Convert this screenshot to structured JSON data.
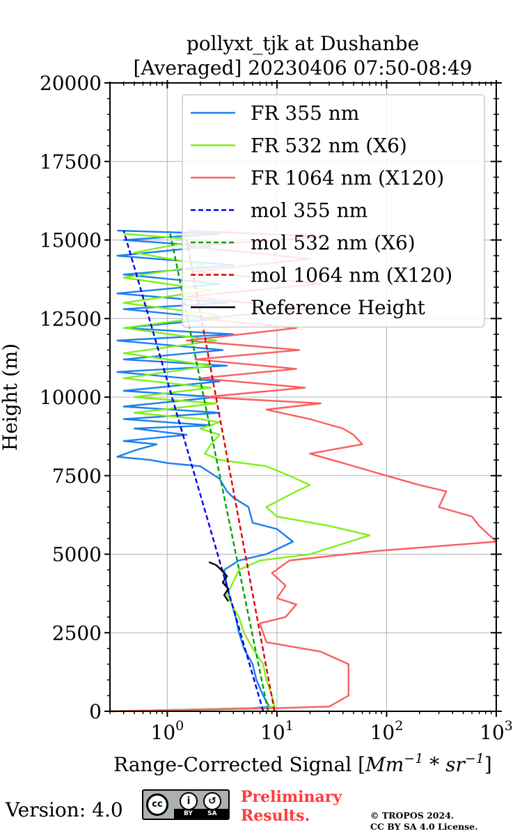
{
  "chart_data": {
    "type": "line",
    "title_lines": [
      "pollyxt_tjk at Dushanbe",
      "[Averaged] 20230406 07:50-08:49"
    ],
    "xlabel_main": "Range-Corrected Signal [",
    "xlabel_unit": "Mm",
    "xlabel_exp1": "−1",
    "xlabel_mid": " * ",
    "xlabel_unit2": "sr",
    "xlabel_exp2": "−1",
    "xlabel_end": "]",
    "ylabel": "Height (m)",
    "xscale": "log",
    "xlim": [
      0.3,
      1000
    ],
    "ylim": [
      0,
      20000
    ],
    "grid": true,
    "legend_position": "top-right",
    "x_ticks": [
      {
        "value": 1,
        "base": "10",
        "exp": "0"
      },
      {
        "value": 10,
        "base": "10",
        "exp": "1"
      },
      {
        "value": 100,
        "base": "10",
        "exp": "2"
      },
      {
        "value": 1000,
        "base": "10",
        "exp": "3"
      }
    ],
    "y_ticks": [
      {
        "value": 0,
        "label": "0"
      },
      {
        "value": 2500,
        "label": "2500"
      },
      {
        "value": 5000,
        "label": "5000"
      },
      {
        "value": 7500,
        "label": "7500"
      },
      {
        "value": 10000,
        "label": "10000"
      },
      {
        "value": 12500,
        "label": "12500"
      },
      {
        "value": 15000,
        "label": "15000"
      },
      {
        "value": 17500,
        "label": "17500"
      },
      {
        "value": 20000,
        "label": "20000"
      }
    ],
    "series": [
      {
        "name": "FR 355 nm",
        "style": "solid",
        "color": "#1a7ff0",
        "points": [
          [
            0.3,
            0
          ],
          [
            6,
            100
          ],
          [
            8.5,
            150
          ],
          [
            7.5,
            500
          ],
          [
            6.5,
            1000
          ],
          [
            6,
            1500
          ],
          [
            5,
            2000
          ],
          [
            4.5,
            2500
          ],
          [
            4.2,
            3000
          ],
          [
            3.8,
            3500
          ],
          [
            3.5,
            4000
          ],
          [
            3.3,
            4500
          ],
          [
            4.5,
            4800
          ],
          [
            8,
            5000
          ],
          [
            14,
            5400
          ],
          [
            10,
            5800
          ],
          [
            6,
            6000
          ],
          [
            5.5,
            6500
          ],
          [
            4,
            6800
          ],
          [
            3.5,
            7000
          ],
          [
            3,
            7400
          ],
          [
            2,
            7800
          ],
          [
            1,
            7900
          ],
          [
            0.7,
            8000
          ],
          [
            0.35,
            8100
          ],
          [
            0.5,
            8300
          ],
          [
            0.8,
            8500
          ],
          [
            0.4,
            8600
          ],
          [
            1.5,
            8800
          ],
          [
            0.5,
            9000
          ],
          [
            2.5,
            9100
          ],
          [
            0.4,
            9300
          ],
          [
            3,
            9500
          ],
          [
            0.4,
            9700
          ],
          [
            2.8,
            10000
          ],
          [
            0.4,
            10200
          ],
          [
            3,
            10500
          ],
          [
            0.35,
            10800
          ],
          [
            3.5,
            11000
          ],
          [
            0.4,
            11200
          ],
          [
            3.2,
            11500
          ],
          [
            0.35,
            11800
          ],
          [
            4,
            12000
          ],
          [
            0.4,
            12200
          ],
          [
            3,
            12500
          ],
          [
            0.4,
            12800
          ],
          [
            3.5,
            13000
          ],
          [
            0.35,
            13300
          ],
          [
            3,
            13600
          ],
          [
            0.4,
            13900
          ],
          [
            4,
            14200
          ],
          [
            0.35,
            14500
          ],
          [
            2.5,
            14800
          ],
          [
            0.4,
            15000
          ],
          [
            3,
            15200
          ],
          [
            0.35,
            15300
          ]
        ]
      },
      {
        "name": "FR 532 nm (X6)",
        "style": "solid",
        "color": "#80f01a",
        "points": [
          [
            0.3,
            0
          ],
          [
            7,
            100
          ],
          [
            9.5,
            150
          ],
          [
            9,
            500
          ],
          [
            8,
            1000
          ],
          [
            7.5,
            1500
          ],
          [
            6,
            2000
          ],
          [
            5,
            2500
          ],
          [
            4.5,
            3000
          ],
          [
            4,
            3300
          ],
          [
            3.5,
            3700
          ],
          [
            4.5,
            4500
          ],
          [
            7,
            4800
          ],
          [
            20,
            5000
          ],
          [
            70,
            5600
          ],
          [
            30,
            5900
          ],
          [
            10,
            6200
          ],
          [
            8,
            6500
          ],
          [
            15,
            7000
          ],
          [
            20,
            7200
          ],
          [
            13,
            7500
          ],
          [
            8,
            7800
          ],
          [
            3,
            8000
          ],
          [
            2.2,
            8200
          ],
          [
            2.5,
            8500
          ],
          [
            3,
            8800
          ],
          [
            2,
            9000
          ],
          [
            3,
            9200
          ],
          [
            2,
            9300
          ],
          [
            0.5,
            9500
          ],
          [
            2.8,
            9800
          ],
          [
            0.5,
            10000
          ],
          [
            2.5,
            10300
          ],
          [
            0.4,
            10600
          ],
          [
            2.5,
            11000
          ],
          [
            0.4,
            11400
          ],
          [
            2.8,
            11800
          ],
          [
            0.4,
            12200
          ],
          [
            3,
            12600
          ],
          [
            0.4,
            13000
          ],
          [
            2.5,
            13400
          ],
          [
            0.4,
            13800
          ],
          [
            2.2,
            14200
          ],
          [
            0.5,
            14600
          ],
          [
            2,
            15000
          ],
          [
            0.4,
            15200
          ]
        ]
      },
      {
        "name": "FR 1064 nm (X120)",
        "style": "solid",
        "color": "#fa5f5f",
        "points": [
          [
            0.3,
            0
          ],
          [
            10,
            100
          ],
          [
            30,
            150
          ],
          [
            45,
            500
          ],
          [
            45,
            1500
          ],
          [
            25,
            1900
          ],
          [
            8,
            2200
          ],
          [
            7,
            2800
          ],
          [
            12,
            3000
          ],
          [
            15,
            3400
          ],
          [
            10,
            3600
          ],
          [
            12,
            4000
          ],
          [
            9,
            4400
          ],
          [
            13,
            4800
          ],
          [
            80,
            5100
          ],
          [
            1000,
            5400
          ],
          [
            700,
            5900
          ],
          [
            600,
            6200
          ],
          [
            300,
            6500
          ],
          [
            350,
            7000
          ],
          [
            200,
            7200
          ],
          [
            100,
            7500
          ],
          [
            40,
            7900
          ],
          [
            20,
            8200
          ],
          [
            60,
            8500
          ],
          [
            50,
            8800
          ],
          [
            40,
            9000
          ],
          [
            20,
            9300
          ],
          [
            8,
            9600
          ],
          [
            25,
            9800
          ],
          [
            2.2,
            10000
          ],
          [
            18,
            10300
          ],
          [
            2,
            10600
          ],
          [
            15,
            10900
          ],
          [
            1.8,
            11200
          ],
          [
            16,
            11500
          ],
          [
            1.5,
            11800
          ],
          [
            15,
            12200
          ],
          [
            2,
            12500
          ],
          [
            20,
            12800
          ],
          [
            1.5,
            13200
          ],
          [
            25,
            13600
          ],
          [
            1.8,
            14000
          ],
          [
            20,
            14400
          ],
          [
            1.5,
            14800
          ],
          [
            28,
            15100
          ],
          [
            1.5,
            15300
          ]
        ]
      },
      {
        "name": "mol 355 nm",
        "style": "dashed",
        "color": "#0000ee",
        "points": [
          [
            7.5,
            0
          ],
          [
            0.4,
            15300
          ]
        ]
      },
      {
        "name": "mol 532 nm (X6)",
        "style": "dashed",
        "color": "#00a000",
        "points": [
          [
            8.3,
            0
          ],
          [
            1.05,
            15300
          ]
        ]
      },
      {
        "name": "mol 1064 nm (X120)",
        "style": "dashed",
        "color": "#dd0000",
        "points": [
          [
            9.5,
            0
          ],
          [
            1.45,
            15300
          ]
        ]
      },
      {
        "name": "Reference Height",
        "style": "solid",
        "color": "#000000",
        "points": [
          [
            3.6,
            3500
          ],
          [
            3.3,
            3700
          ],
          [
            3.6,
            3900
          ],
          [
            3.2,
            4100
          ],
          [
            3.5,
            4300
          ],
          [
            3.1,
            4500
          ],
          [
            2.8,
            4650
          ],
          [
            2.4,
            4750
          ]
        ]
      }
    ]
  },
  "footer": {
    "version_label": "Version: 4.0",
    "cc_symbol": "cc",
    "cc_by": "BY",
    "cc_sa": "SA",
    "preliminary_line1": "Preliminary",
    "preliminary_line2": "Results.",
    "copyright_line1": "© TROPOS 2024.",
    "copyright_line2": "CC BY SA 4.0 License."
  }
}
